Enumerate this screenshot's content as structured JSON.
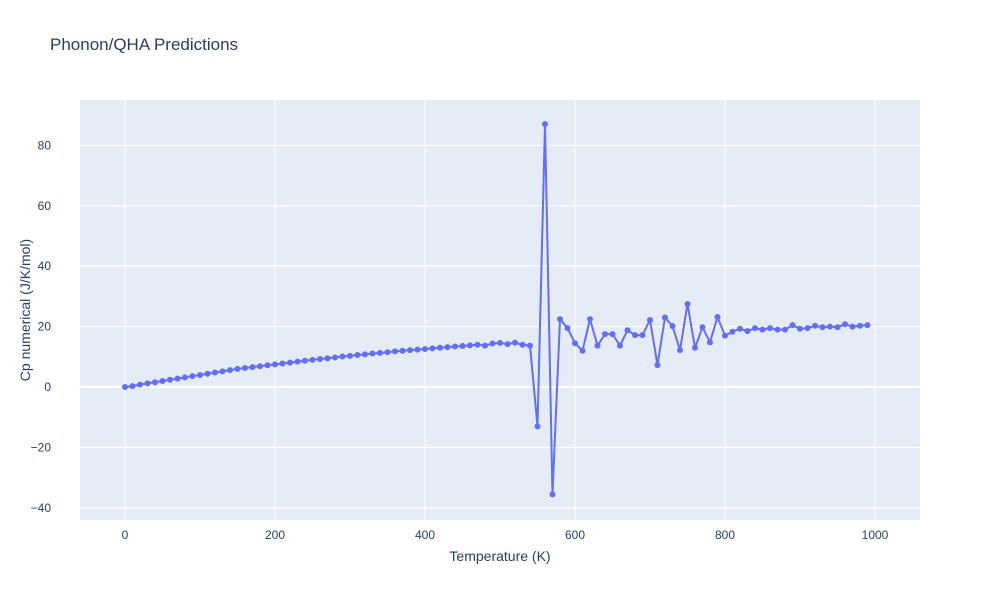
{
  "chart_data": {
    "type": "scatter",
    "mode": "lines+markers",
    "title": "Phonon/QHA Predictions",
    "xlabel": "Temperature (K)",
    "ylabel": "Cp numerical (J/K/mol)",
    "xlim": [
      -60,
      1060
    ],
    "ylim": [
      -44,
      95
    ],
    "xticks": [
      0,
      200,
      400,
      600,
      800,
      1000
    ],
    "yticks": [
      -40,
      -20,
      0,
      20,
      40,
      60,
      80
    ],
    "xtick_labels": [
      "0",
      "200",
      "400",
      "600",
      "800",
      "1000"
    ],
    "ytick_labels": [
      "−40",
      "−20",
      "0",
      "20",
      "40",
      "60",
      "80"
    ],
    "grid": true,
    "colors": {
      "series": "#636efa",
      "plot_bg": "#e5ecf6",
      "grid": "#ffffff",
      "text": "#2a3f5f"
    },
    "series": [
      {
        "x": [
          0,
          10,
          20,
          30,
          40,
          50,
          60,
          70,
          80,
          90,
          100,
          110,
          120,
          130,
          140,
          150,
          160,
          170,
          180,
          190,
          200,
          210,
          220,
          230,
          240,
          250,
          260,
          270,
          280,
          290,
          300,
          310,
          320,
          330,
          340,
          350,
          360,
          370,
          380,
          390,
          400,
          410,
          420,
          430,
          440,
          450,
          460,
          470,
          480,
          490,
          500,
          510,
          520,
          530,
          540,
          550,
          560,
          570,
          580,
          590,
          600,
          610,
          620,
          630,
          640,
          650,
          660,
          670,
          680,
          690,
          700,
          710,
          720,
          730,
          740,
          750,
          760,
          770,
          780,
          790,
          800,
          810,
          820,
          830,
          840,
          850,
          860,
          870,
          880,
          890,
          900,
          910,
          920,
          930,
          940,
          950,
          960,
          970,
          980,
          990
        ],
        "y": [
          0,
          0.3,
          0.8,
          1.2,
          1.6,
          2.0,
          2.4,
          2.8,
          3.2,
          3.6,
          4.0,
          4.4,
          4.8,
          5.2,
          5.6,
          6.0,
          6.3,
          6.6,
          6.9,
          7.2,
          7.5,
          7.8,
          8.1,
          8.4,
          8.7,
          9.0,
          9.3,
          9.5,
          9.8,
          10.1,
          10.3,
          10.6,
          10.8,
          11.1,
          11.3,
          11.5,
          11.8,
          12.0,
          12.2,
          12.4,
          12.6,
          12.8,
          13.0,
          13.2,
          13.4,
          13.6,
          13.8,
          14.0,
          13.7,
          14.4,
          14.6,
          14.2,
          14.7,
          14.0,
          13.7,
          -13,
          87,
          -35.5,
          22.5,
          19.5,
          14.5,
          12,
          22.5,
          13.7,
          17.5,
          17.5,
          13.7,
          18.8,
          17.2,
          17.2,
          22.2,
          7.3,
          23,
          20.2,
          12.2,
          27.5,
          13,
          19.8,
          14.8,
          23.2,
          17,
          18.3,
          19.3,
          18.5,
          19.5,
          19,
          19.5,
          19,
          19,
          20.5,
          19.3,
          19.5,
          20.3,
          19.8,
          20,
          19.8,
          20.8,
          20,
          20.3,
          20.5
        ]
      }
    ]
  }
}
